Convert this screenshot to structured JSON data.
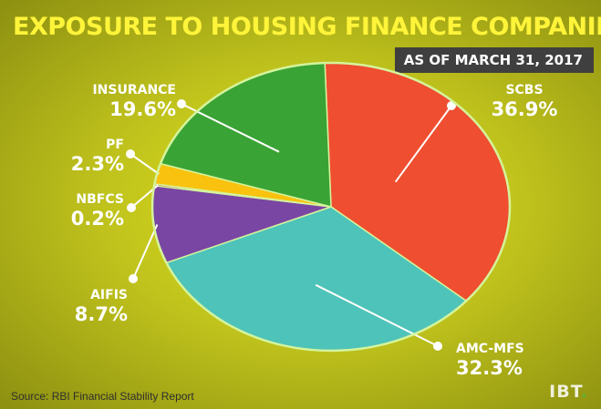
{
  "chart_data": {
    "type": "pie",
    "title": "EXPOSURE TO HOUSING FINANCE COMPANIES",
    "subtitle": "AS OF MARCH 31, 2017",
    "slices": [
      {
        "label": "SCBS",
        "value": 36.9,
        "display": "36.9%",
        "color": "#ef4e30"
      },
      {
        "label": "AMC-MFS",
        "value": 32.3,
        "display": "32.3%",
        "color": "#4ec3b9"
      },
      {
        "label": "AIFIS",
        "value": 8.7,
        "display": "8.7%",
        "color": "#7a46a4"
      },
      {
        "label": "NBFCS",
        "value": 0.2,
        "display": "0.2%",
        "color": "#d33c36"
      },
      {
        "label": "PF",
        "value": 2.3,
        "display": "2.3%",
        "color": "#f8c20e"
      },
      {
        "label": "INSURANCE",
        "value": 19.6,
        "display": "19.6%",
        "color": "#3aa335"
      }
    ],
    "source": "Source: RBI Financial Stability Report",
    "outline_color": "#d5f49c"
  },
  "brand": {
    "logo_text": "IBT",
    "logo_dot": "."
  }
}
